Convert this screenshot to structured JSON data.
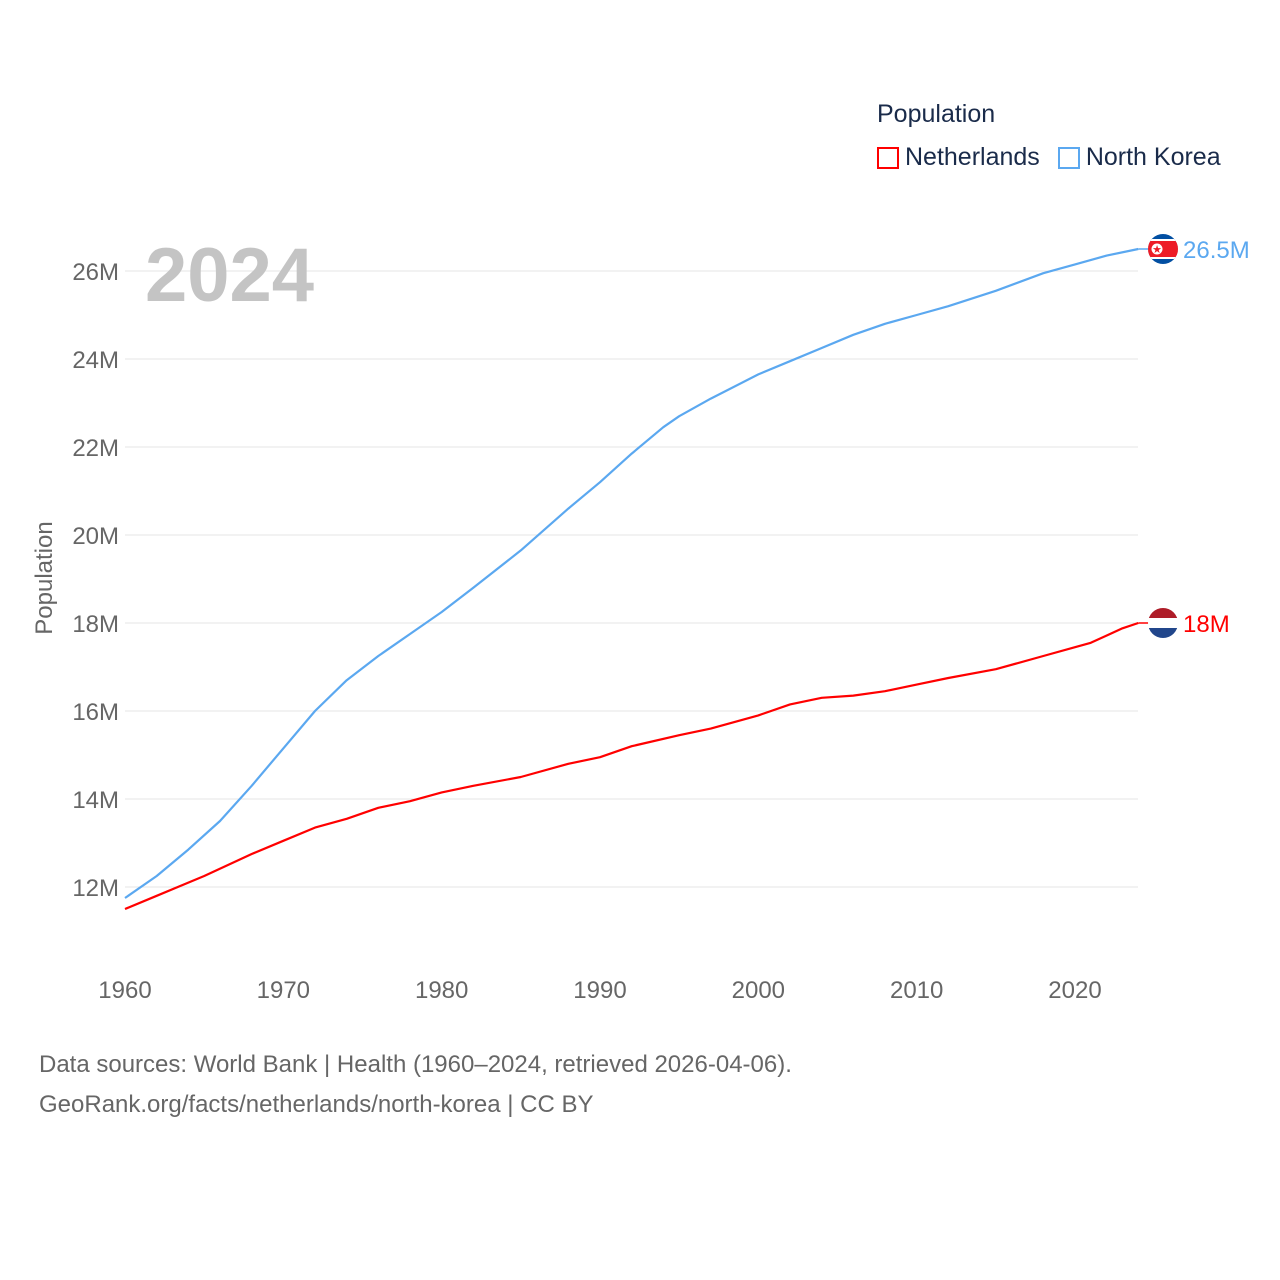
{
  "chart_data": {
    "type": "line",
    "title": "Population",
    "year_label": "2024",
    "xlabel": "",
    "ylabel": "Population",
    "xlim": [
      1960,
      2024
    ],
    "ylim": [
      11,
      27
    ],
    "x_ticks": [
      "1960",
      "1970",
      "1980",
      "1990",
      "2000",
      "2010",
      "2020"
    ],
    "y_ticks": [
      {
        "v": 12,
        "label": "12M"
      },
      {
        "v": 14,
        "label": "14M"
      },
      {
        "v": 16,
        "label": "16M"
      },
      {
        "v": 18,
        "label": "18M"
      },
      {
        "v": 20,
        "label": "20M"
      },
      {
        "v": 22,
        "label": "22M"
      },
      {
        "v": 24,
        "label": "24M"
      },
      {
        "v": 26,
        "label": "26M"
      }
    ],
    "grid": true,
    "legend_position": "top-right",
    "series": [
      {
        "name": "Netherlands",
        "color": "#ff0000",
        "end_label": "18M",
        "points": [
          [
            1960,
            11.5
          ],
          [
            1962,
            11.8
          ],
          [
            1965,
            12.25
          ],
          [
            1968,
            12.75
          ],
          [
            1970,
            13.05
          ],
          [
            1972,
            13.35
          ],
          [
            1974,
            13.55
          ],
          [
            1976,
            13.8
          ],
          [
            1978,
            13.95
          ],
          [
            1980,
            14.15
          ],
          [
            1982,
            14.3
          ],
          [
            1985,
            14.5
          ],
          [
            1988,
            14.8
          ],
          [
            1990,
            14.95
          ],
          [
            1992,
            15.2
          ],
          [
            1995,
            15.45
          ],
          [
            1997,
            15.6
          ],
          [
            2000,
            15.9
          ],
          [
            2002,
            16.15
          ],
          [
            2004,
            16.3
          ],
          [
            2006,
            16.35
          ],
          [
            2008,
            16.45
          ],
          [
            2010,
            16.6
          ],
          [
            2012,
            16.75
          ],
          [
            2015,
            16.95
          ],
          [
            2018,
            17.25
          ],
          [
            2020,
            17.45
          ],
          [
            2021,
            17.55
          ],
          [
            2023,
            17.88
          ],
          [
            2024,
            18.0
          ]
        ]
      },
      {
        "name": "North Korea",
        "color": "#5ba8f0",
        "end_label": "26.5M",
        "points": [
          [
            1960,
            11.75
          ],
          [
            1962,
            12.25
          ],
          [
            1964,
            12.85
          ],
          [
            1966,
            13.5
          ],
          [
            1968,
            14.3
          ],
          [
            1970,
            15.15
          ],
          [
            1972,
            16.0
          ],
          [
            1974,
            16.7
          ],
          [
            1976,
            17.25
          ],
          [
            1978,
            17.75
          ],
          [
            1980,
            18.25
          ],
          [
            1982,
            18.8
          ],
          [
            1985,
            19.65
          ],
          [
            1988,
            20.6
          ],
          [
            1990,
            21.2
          ],
          [
            1992,
            21.85
          ],
          [
            1994,
            22.45
          ],
          [
            1995,
            22.7
          ],
          [
            1997,
            23.1
          ],
          [
            2000,
            23.65
          ],
          [
            2002,
            23.95
          ],
          [
            2004,
            24.25
          ],
          [
            2006,
            24.55
          ],
          [
            2008,
            24.8
          ],
          [
            2010,
            25.0
          ],
          [
            2012,
            25.2
          ],
          [
            2015,
            25.55
          ],
          [
            2018,
            25.95
          ],
          [
            2020,
            26.15
          ],
          [
            2022,
            26.35
          ],
          [
            2024,
            26.5
          ]
        ]
      }
    ]
  },
  "footer": {
    "line1": "Data sources: World Bank | Health (1960–2024, retrieved 2026-04-06).",
    "line2": "GeoRank.org/facts/netherlands/north-korea | CC BY"
  }
}
